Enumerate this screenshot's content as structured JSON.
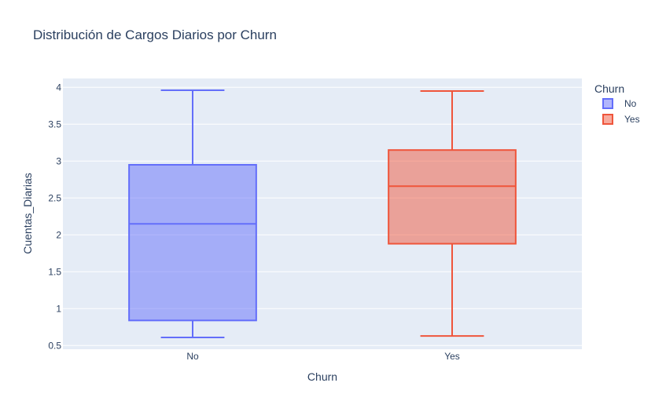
{
  "chart_data": {
    "type": "box",
    "title": "Distribución de Cargos Diarios por Churn",
    "xlabel": "Churn",
    "ylabel": "Cuentas_Diarias",
    "ylim": [
      0.45,
      4.12
    ],
    "yticks": [
      0.5,
      1,
      1.5,
      2,
      2.5,
      3,
      3.5,
      4
    ],
    "ytick_labels": [
      "0.5",
      "1",
      "1.5",
      "2",
      "2.5",
      "3",
      "3.5",
      "4"
    ],
    "categories": [
      "No",
      "Yes"
    ],
    "legend": {
      "title": "Churn",
      "placement": "top-right outside",
      "entries": [
        "No",
        "Yes"
      ]
    },
    "grid": true,
    "series": [
      {
        "name": "No",
        "color": "#636efa",
        "min": 0.61,
        "q1": 0.84,
        "median": 2.15,
        "q3": 2.95,
        "max": 3.96
      },
      {
        "name": "Yes",
        "color": "#ef553b",
        "min": 0.63,
        "q1": 1.88,
        "median": 2.66,
        "q3": 3.15,
        "max": 3.95
      }
    ]
  }
}
